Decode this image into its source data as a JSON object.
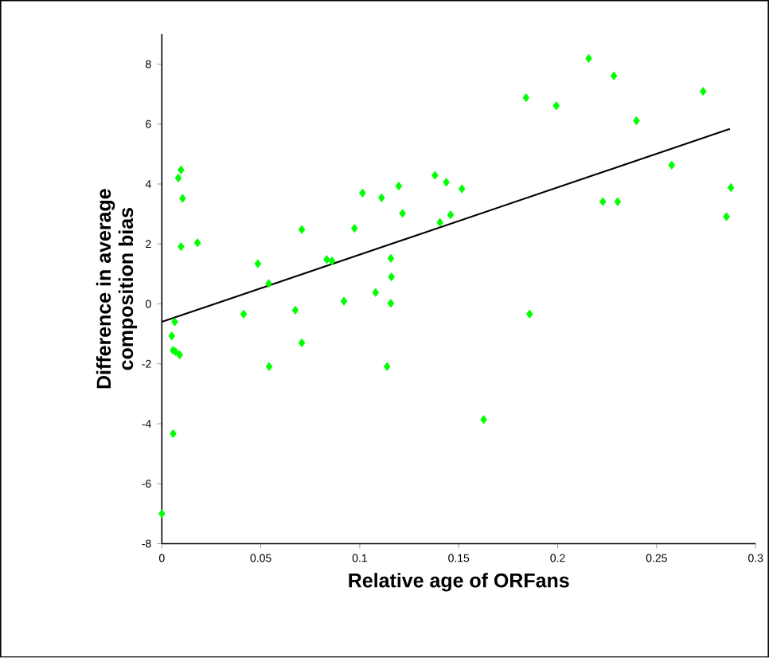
{
  "chart_data": {
    "type": "scatter",
    "xlabel": "Relative age of ORFans",
    "ylabel": "Difference in average\ncomposition bias",
    "xlim": [
      0,
      0.3
    ],
    "ylim": [
      -8,
      9
    ],
    "xticks": [
      0,
      0.05,
      0.1,
      0.15,
      0.2,
      0.25,
      0.3
    ],
    "yticks": [
      -8,
      -6,
      -4,
      -2,
      0,
      2,
      4,
      6,
      8
    ],
    "series": [
      {
        "color": "#00ff00",
        "marker": "diamond",
        "x": [
          0.0,
          0.0057,
          0.005,
          0.0057,
          0.009,
          0.0065,
          0.007,
          0.0097,
          0.0105,
          0.0083,
          0.0097,
          0.018,
          0.0413,
          0.0485,
          0.054,
          0.0542,
          0.0674,
          0.0707,
          0.0707,
          0.0833,
          0.086,
          0.092,
          0.0973,
          0.1014,
          0.108,
          0.111,
          0.1138,
          0.1157,
          0.116,
          0.1157,
          0.1197,
          0.1216,
          0.138,
          0.1405,
          0.1437,
          0.1459,
          0.1516,
          0.184,
          0.1993,
          0.2157,
          0.2284,
          0.2398,
          0.2735,
          0.2576,
          0.2228,
          0.2303,
          0.2875,
          0.2853,
          0.1858,
          0.1626
        ],
        "values": [
          -7.0,
          -4.33,
          -1.07,
          -1.55,
          -1.7,
          -0.6,
          -1.6,
          1.91,
          3.52,
          4.2,
          4.47,
          2.04,
          -0.34,
          1.34,
          0.68,
          -2.09,
          -0.21,
          -1.3,
          2.48,
          1.48,
          1.43,
          0.09,
          2.52,
          3.7,
          0.38,
          3.54,
          -2.09,
          1.52,
          0.9,
          0.02,
          3.93,
          3.02,
          4.29,
          2.72,
          4.06,
          2.97,
          3.84,
          6.88,
          6.61,
          8.19,
          7.61,
          6.11,
          7.09,
          4.63,
          3.41,
          3.41,
          3.88,
          2.91,
          -0.34,
          -3.86
        ]
      },
      {
        "type": "line",
        "color": "#000000",
        "marker": "none",
        "x": [
          0.0,
          0.287
        ],
        "values": [
          -0.6,
          5.84
        ]
      }
    ]
  }
}
